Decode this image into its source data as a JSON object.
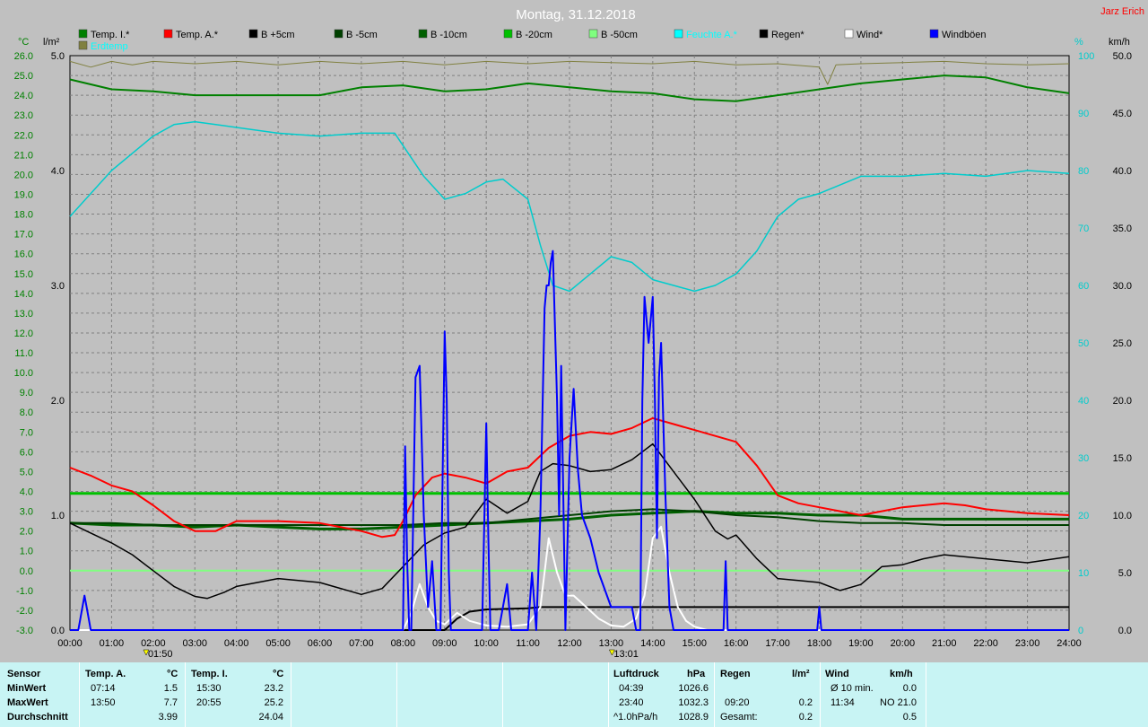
{
  "header": {
    "title": "Montag, 31.12.2018",
    "author": "Jarz Erich"
  },
  "legend": [
    {
      "label": "Temp. I.*",
      "color": "#008000"
    },
    {
      "label": "Temp. A.*",
      "color": "#ff0000"
    },
    {
      "label": "B +5cm",
      "color": "#000000"
    },
    {
      "label": "B -5cm",
      "color": "#004000"
    },
    {
      "label": "B -10cm",
      "color": "#006000"
    },
    {
      "label": "B -20cm",
      "color": "#00c000"
    },
    {
      "label": "B -50cm",
      "color": "#80ff80"
    },
    {
      "label": "Feuchte A.*",
      "color": "#00ffff"
    },
    {
      "label": "Regen*",
      "color": "#000000"
    },
    {
      "label": "Wind*",
      "color": "#ffffff"
    },
    {
      "label": "Windböen",
      "color": "#0000ff"
    },
    {
      "label": "Erdtemp",
      "color": "#808040"
    }
  ],
  "axes": {
    "left1_unit": "°C",
    "left2_unit": "l/m²",
    "right1_unit": "%",
    "right2_unit": "km/h",
    "temp_ticks": [
      "26.0",
      "25.0",
      "24.0",
      "23.0",
      "22.0",
      "21.0",
      "20.0",
      "19.0",
      "18.0",
      "17.0",
      "16.0",
      "15.0",
      "14.0",
      "13.0",
      "12.0",
      "11.0",
      "10.0",
      "9.0",
      "8.0",
      "7.0",
      "6.0",
      "5.0",
      "4.0",
      "3.0",
      "2.0",
      "1.0",
      "0.0",
      "-1.0",
      "-2.0",
      "-3.0"
    ],
    "rain_ticks": [
      "5.0",
      "4.0",
      "3.0",
      "2.0",
      "1.0",
      "0.0"
    ],
    "hum_ticks": [
      "100",
      "90",
      "80",
      "70",
      "60",
      "50",
      "40",
      "30",
      "20",
      "10",
      "0"
    ],
    "wind_ticks": [
      "50.0",
      "45.0",
      "40.0",
      "35.0",
      "30.0",
      "25.0",
      "20.0",
      "15.0",
      "10.0",
      "5.0",
      "0.0"
    ],
    "time_ticks": [
      "00:00",
      "01:00",
      "02:00",
      "03:00",
      "04:00",
      "05:00",
      "06:00",
      "07:00",
      "08:00",
      "09:00",
      "10:00",
      "11:00",
      "12:00",
      "13:00",
      "14:00",
      "15:00",
      "16:00",
      "17:00",
      "18:00",
      "19:00",
      "20:00",
      "21:00",
      "22:00",
      "23:00",
      "24:00"
    ],
    "markers": [
      {
        "hour": 1.83,
        "label": "01:50"
      },
      {
        "hour": 13.02,
        "label": "13:01"
      }
    ]
  },
  "chart_data": {
    "type": "line",
    "title": "Montag, 31.12.2018",
    "x_range": [
      0,
      24
    ],
    "temp_range": [
      -3,
      26
    ],
    "rain_range": [
      0,
      5
    ],
    "hum_range": [
      0,
      100
    ],
    "wind_range": [
      0,
      50
    ],
    "series": [
      {
        "name": "Temp. I.*",
        "axis": "temp",
        "color": "#008000",
        "width": 2,
        "x": [
          0,
          1,
          2,
          3,
          4,
          5,
          6,
          7,
          8,
          9,
          10,
          11,
          12,
          13,
          14,
          15,
          16,
          17,
          18,
          19,
          20,
          21,
          22,
          23,
          24
        ],
        "y": [
          24.8,
          24.3,
          24.2,
          24.0,
          24.0,
          24.0,
          24.0,
          24.4,
          24.5,
          24.2,
          24.3,
          24.6,
          24.4,
          24.2,
          24.1,
          23.8,
          23.7,
          24.0,
          24.3,
          24.6,
          24.8,
          25.0,
          24.9,
          24.4,
          24.1
        ]
      },
      {
        "name": "Erdtemp",
        "axis": "rain",
        "color": "#808040",
        "width": 1,
        "x": [
          0,
          0.5,
          1,
          1.5,
          2,
          3,
          4,
          5,
          6,
          7,
          8,
          9,
          10,
          11,
          12,
          13,
          14,
          15,
          16,
          17,
          18,
          18.2,
          18.4,
          19,
          20,
          21,
          22,
          23,
          24
        ],
        "y": [
          4.95,
          4.9,
          4.95,
          4.92,
          4.95,
          4.93,
          4.95,
          4.92,
          4.95,
          4.93,
          4.95,
          4.92,
          4.95,
          4.93,
          4.95,
          4.94,
          4.93,
          4.95,
          4.92,
          4.93,
          4.9,
          4.75,
          4.92,
          4.93,
          4.94,
          4.95,
          4.93,
          4.92,
          4.93
        ]
      },
      {
        "name": "Feuchte A.*",
        "axis": "hum",
        "color": "#00cccc",
        "width": 1.5,
        "x": [
          0,
          0.5,
          1,
          2,
          2.5,
          3,
          3.5,
          4,
          5,
          6,
          7,
          7.8,
          8.5,
          9,
          9.5,
          10,
          10.4,
          11,
          11.3,
          11.6,
          12,
          12.5,
          13,
          13.5,
          14,
          14.5,
          15,
          15.5,
          16,
          16.5,
          17,
          17.5,
          18,
          19,
          20,
          21,
          22,
          23,
          24
        ],
        "y": [
          72,
          76,
          80,
          86,
          88,
          88.5,
          88,
          87.5,
          86.5,
          86,
          86.5,
          86.5,
          79,
          75,
          76,
          78,
          78.5,
          75,
          67,
          60,
          59,
          62,
          65,
          64,
          61,
          60,
          59,
          60,
          62,
          66,
          72,
          75,
          76,
          79,
          79,
          79.5,
          79,
          80,
          79.5
        ]
      },
      {
        "name": "B -20cm",
        "axis": "temp",
        "color": "#00c000",
        "width": 3,
        "x": [
          0,
          24
        ],
        "y": [
          3.9,
          3.9
        ]
      },
      {
        "name": "B -50cm",
        "axis": "temp",
        "color": "#80ff80",
        "width": 2,
        "x": [
          0,
          24
        ],
        "y": [
          0.0,
          0.0
        ]
      },
      {
        "name": "B -10cm",
        "axis": "temp",
        "color": "#006000",
        "width": 3,
        "x": [
          0,
          1,
          2,
          3,
          4,
          5,
          6,
          7,
          8,
          9,
          10,
          11,
          12,
          13,
          14,
          15,
          16,
          17,
          18,
          19,
          20,
          21,
          22,
          23,
          24
        ],
        "y": [
          2.4,
          2.3,
          2.3,
          2.2,
          2.3,
          2.2,
          2.1,
          2.1,
          2.2,
          2.3,
          2.4,
          2.5,
          2.6,
          2.8,
          2.9,
          3.0,
          2.9,
          2.9,
          2.8,
          2.8,
          2.6,
          2.6,
          2.6,
          2.6,
          2.6
        ]
      },
      {
        "name": "B -5cm",
        "axis": "temp",
        "color": "#004000",
        "width": 2,
        "x": [
          0,
          1,
          2,
          3,
          4,
          5,
          6,
          7,
          8,
          9,
          10,
          11,
          12,
          13,
          14,
          15,
          16,
          17,
          18,
          19,
          20,
          21,
          22,
          23,
          24
        ],
        "y": [
          2.4,
          2.4,
          2.3,
          2.3,
          2.3,
          2.3,
          2.3,
          2.3,
          2.3,
          2.4,
          2.4,
          2.6,
          2.8,
          3.0,
          3.1,
          3.0,
          2.8,
          2.7,
          2.5,
          2.4,
          2.4,
          2.3,
          2.3,
          2.3,
          2.3
        ]
      },
      {
        "name": "Temp. A.*",
        "axis": "temp",
        "color": "#ff0000",
        "width": 2,
        "x": [
          0,
          0.5,
          1,
          1.5,
          2,
          2.5,
          3,
          3.5,
          4,
          5,
          6,
          7,
          7.5,
          7.8,
          8,
          8.3,
          8.7,
          9,
          9.5,
          10,
          10.5,
          11,
          11.5,
          12,
          12.5,
          13,
          13.5,
          14,
          14.5,
          15,
          15.5,
          16,
          16.5,
          17,
          17.5,
          18,
          18.5,
          19,
          19.5,
          20,
          21,
          21.5,
          22,
          23,
          24
        ],
        "y": [
          5.2,
          4.8,
          4.3,
          4.0,
          3.3,
          2.5,
          2.0,
          2.0,
          2.5,
          2.5,
          2.4,
          2.0,
          1.7,
          1.8,
          2.5,
          3.8,
          4.7,
          4.9,
          4.7,
          4.4,
          5.0,
          5.2,
          6.2,
          6.8,
          7.0,
          6.9,
          7.2,
          7.7,
          7.4,
          7.1,
          6.8,
          6.5,
          5.3,
          3.8,
          3.4,
          3.2,
          3.0,
          2.8,
          3.0,
          3.2,
          3.4,
          3.3,
          3.1,
          2.9,
          2.8
        ]
      },
      {
        "name": "B +5cm",
        "axis": "temp",
        "color": "#000000",
        "width": 1.5,
        "x": [
          0,
          0.5,
          1,
          1.5,
          2,
          2.5,
          3,
          3.3,
          3.7,
          4,
          5,
          6,
          7,
          7.5,
          8,
          8.5,
          9,
          9.5,
          10,
          10.5,
          11,
          11.3,
          11.6,
          12,
          12.5,
          13,
          13.5,
          14,
          14.5,
          15,
          15.5,
          15.8,
          16,
          16.5,
          17,
          17.5,
          18,
          18.5,
          19,
          19.5,
          20,
          20.5,
          21,
          22,
          23,
          24
        ],
        "y": [
          2.4,
          1.9,
          1.4,
          0.8,
          0.0,
          -0.8,
          -1.3,
          -1.4,
          -1.1,
          -0.8,
          -0.4,
          -0.6,
          -1.2,
          -0.9,
          0.2,
          1.3,
          1.9,
          2.2,
          3.6,
          2.9,
          3.5,
          5.0,
          5.4,
          5.3,
          5.0,
          5.1,
          5.6,
          6.4,
          5.0,
          3.6,
          2.0,
          1.6,
          1.8,
          0.6,
          -0.4,
          -0.5,
          -0.6,
          -1.0,
          -0.7,
          0.2,
          0.3,
          0.6,
          0.8,
          0.6,
          0.4,
          0.7
        ]
      },
      {
        "name": "Regen*",
        "axis": "rain",
        "color": "#000000",
        "width": 2,
        "x": [
          0,
          9.0,
          9.3,
          9.6,
          10.0,
          11.0,
          11.3,
          24
        ],
        "y": [
          0,
          0,
          0.1,
          0.16,
          0.18,
          0.19,
          0.2,
          0.2
        ]
      },
      {
        "name": "Wind*",
        "axis": "wind",
        "color": "#ffffff",
        "width": 2,
        "x": [
          0,
          8.0,
          8.2,
          8.4,
          8.6,
          8.8,
          9.0,
          9.3,
          9.6,
          10,
          10.5,
          11,
          11.3,
          11.5,
          11.7,
          11.9,
          12.1,
          12.4,
          12.7,
          13,
          13.3,
          13.6,
          13.8,
          14.0,
          14.2,
          14.4,
          14.6,
          14.8,
          15,
          15.3,
          24
        ],
        "y": [
          0,
          0,
          1.5,
          4,
          2,
          0.8,
          0.5,
          1.5,
          0.8,
          0.4,
          0.3,
          0.5,
          2,
          8,
          5,
          3,
          3,
          2,
          1,
          0.4,
          0.3,
          1,
          3,
          8,
          9,
          5,
          2,
          0.8,
          0.3,
          0,
          0
        ]
      },
      {
        "name": "Windböen",
        "axis": "wind",
        "color": "#0000ff",
        "width": 2,
        "x": [
          0,
          0.2,
          0.3,
          0.35,
          0.4,
          0.45,
          0.5,
          0.6,
          0.7,
          8.0,
          8.05,
          8.1,
          8.15,
          8.2,
          8.3,
          8.4,
          8.5,
          8.6,
          8.7,
          8.8,
          8.9,
          9.0,
          9.05,
          9.1,
          9.15,
          9.2,
          9.3,
          9.4,
          9.5,
          9.6,
          9.7,
          9.8,
          9.9,
          10.0,
          10.05,
          10.1,
          10.15,
          10.2,
          10.3,
          10.5,
          10.6,
          10.7,
          10.8,
          10.9,
          11.0,
          11.1,
          11.2,
          11.3,
          11.4,
          11.45,
          11.5,
          11.55,
          11.6,
          11.7,
          11.75,
          11.8,
          11.85,
          11.9,
          12.0,
          12.1,
          12.2,
          12.3,
          12.5,
          12.7,
          13.0,
          13.3,
          13.5,
          13.6,
          13.7,
          13.75,
          13.8,
          13.9,
          14.0,
          14.05,
          14.1,
          14.15,
          14.2,
          14.3,
          14.4,
          14.5,
          15.0,
          15.5,
          15.7,
          15.75,
          15.8,
          15.85,
          15.9,
          17.9,
          17.95,
          18.0,
          18.05,
          18.1,
          24
        ],
        "y": [
          0,
          0,
          2,
          3,
          2,
          1,
          0,
          0,
          0,
          0,
          16,
          6,
          0,
          0,
          22,
          23,
          10,
          2,
          6,
          0,
          0,
          26,
          20,
          5,
          0,
          0,
          0,
          0,
          0,
          0,
          0,
          0,
          0,
          18,
          8,
          0,
          0,
          0,
          0,
          4,
          0,
          0,
          0,
          0,
          0,
          5,
          0,
          10,
          28,
          30,
          30,
          32,
          33,
          20,
          10,
          23,
          12,
          0,
          15,
          21,
          14,
          10,
          8,
          5,
          2,
          2,
          2,
          0,
          0,
          20,
          29,
          25,
          29,
          20,
          8,
          22,
          25,
          12,
          2,
          0,
          0,
          0,
          0,
          6,
          0,
          0,
          0,
          0,
          0,
          2,
          0,
          0,
          0
        ]
      }
    ]
  },
  "table": {
    "headers": {
      "sensor": "Sensor",
      "temp_a": "Temp. A.",
      "temp_a_unit": "°C",
      "temp_i": "Temp. I.",
      "temp_i_unit": "°C",
      "pressure": "Luftdruck",
      "pressure_unit": "hPa",
      "rain": "Regen",
      "rain_unit": "l/m²",
      "wind": "Wind",
      "wind_unit": "km/h"
    },
    "rows": [
      {
        "label": "MinWert",
        "temp_a_time": "07:14",
        "temp_a_val": "1.5",
        "temp_i_time": "15:30",
        "temp_i_val": "23.2",
        "p_time": "04:39",
        "p_val": "1026.6",
        "rain_time": "",
        "rain_val": "",
        "wind_label": "Ø 10 min.",
        "wind_val": "0.0"
      },
      {
        "label": "MaxWert",
        "temp_a_time": "13:50",
        "temp_a_val": "7.7",
        "temp_i_time": "20:55",
        "temp_i_val": "25.2",
        "p_time": "23:40",
        "p_val": "1032.3",
        "rain_time": "09:20",
        "rain_val": "0.2",
        "wind_label": "11:34",
        "wind_val": "NO 21.0"
      },
      {
        "label": "Durchschnitt",
        "temp_a_time": "",
        "temp_a_val": "3.99",
        "temp_i_time": "",
        "temp_i_val": "24.04",
        "p_time": "^1.0hPa/h",
        "p_val": "1028.9",
        "rain_time": "Gesamt:",
        "rain_val": "0.2",
        "wind_label": "",
        "wind_val": "0.5"
      }
    ]
  }
}
